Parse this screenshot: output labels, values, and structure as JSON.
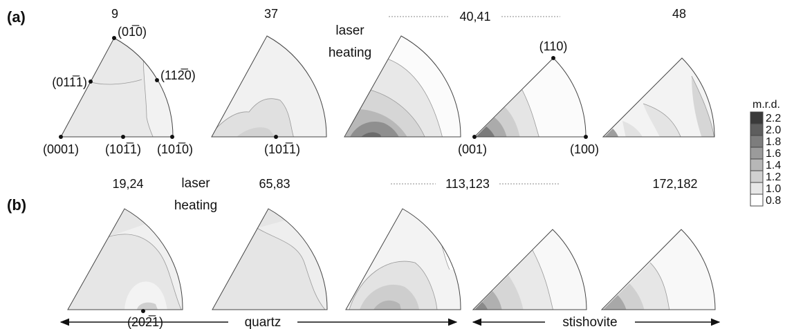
{
  "row_labels": {
    "a": "(a)",
    "b": "(b)"
  },
  "laser_heating_a": [
    "laser",
    "heating"
  ],
  "laser_heating_b": [
    "laser",
    "heating"
  ],
  "pressure_labels_a": [
    "9",
    "37",
    "40,41",
    "48"
  ],
  "pressure_labels_b": [
    "19,24",
    "65,83",
    "113,123",
    "172,182"
  ],
  "miller_quartz": {
    "top": "(01̅0)",
    "left": "(011̅1)",
    "right": "(112̅0)",
    "bottom_left": "(0001)",
    "bottom_mid": "(101̅1)",
    "bottom_right": "(101̅0)",
    "p2_bottom": "(101̅1)",
    "b_bottom": "(202̅1)"
  },
  "miller_stishovite": {
    "top": "(110)",
    "bottom_left": "(001)",
    "bottom_right": "(100)"
  },
  "legend": {
    "title": "m.r.d.",
    "levels": [
      "2.2",
      "2.0",
      "1.8",
      "1.6",
      "1.4",
      "1.2",
      "1.0",
      "0.8"
    ],
    "colors": [
      "#3a3a3a",
      "#5e5e5e",
      "#7d7d7d",
      "#9b9b9b",
      "#b7b7b7",
      "#d0d0d0",
      "#e7e7e7",
      "#ffffff"
    ]
  },
  "sections": {
    "quartz": "quartz",
    "stishovite": "stishovite"
  }
}
